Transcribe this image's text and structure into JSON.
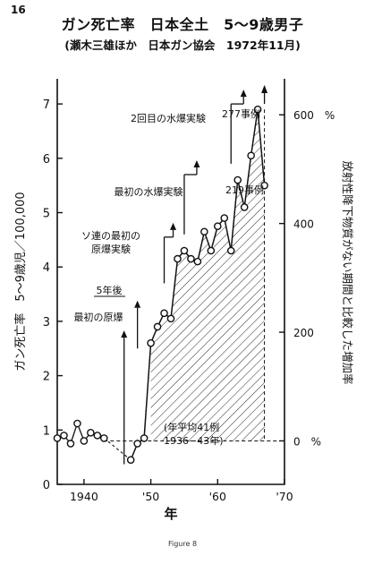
{
  "page_number": "16",
  "header": {
    "title": "ガン死亡率　日本全土　5〜9歳男子",
    "subtitle": "(瀬木三雄ほか　日本ガン協会　1972年11月)"
  },
  "footer": {
    "caption": "Figure 8"
  },
  "chart_data": {
    "type": "line",
    "title": "ガン死亡率　日本全土　5〜9歳男子",
    "subtitle": "(瀬木三雄ほか　日本ガン協会　1972年11月)",
    "xlabel": "年",
    "ylabel": "ガン死亡率　5〜9歳児／100,000",
    "ylabel_right": "放射性降下物質がない期間と比較した増加率",
    "xlim": [
      1936,
      1970
    ],
    "ylim": [
      0,
      7.5
    ],
    "x_ticks": [
      {
        "value": 1940,
        "label": "1940"
      },
      {
        "value": 1950,
        "label": "'50"
      },
      {
        "value": 1960,
        "label": "'60"
      },
      {
        "value": 1970,
        "label": "'70"
      }
    ],
    "y_ticks": [
      {
        "value": 0,
        "label": "0"
      },
      {
        "value": 1,
        "label": "1"
      },
      {
        "value": 2,
        "label": "2"
      },
      {
        "value": 3,
        "label": "3"
      },
      {
        "value": 4,
        "label": "4"
      },
      {
        "value": 5,
        "label": "5"
      },
      {
        "value": 6,
        "label": "6"
      },
      {
        "value": 7,
        "label": "7"
      }
    ],
    "y2_ticks": [
      {
        "value": 0.8,
        "label": "0　%"
      },
      {
        "value": 2.8,
        "label": "200"
      },
      {
        "value": 4.8,
        "label": "400"
      },
      {
        "value": 6.8,
        "label": "600　%"
      }
    ],
    "baseline": {
      "value": 0.8,
      "label_lines": [
        "(年平均41例",
        "1936−43年)"
      ]
    },
    "series": [
      {
        "x": [
          1936,
          1937,
          1938,
          1939,
          1940,
          1941,
          1942,
          1943,
          1947,
          1948,
          1949,
          1950,
          1951,
          1952,
          1953,
          1954,
          1955,
          1956,
          1957,
          1958,
          1959,
          1960,
          1961,
          1962,
          1963,
          1964,
          1965,
          1966,
          1967
        ],
        "y": [
          0.85,
          0.9,
          0.75,
          1.12,
          0.8,
          0.95,
          0.9,
          0.85,
          0.45,
          0.75,
          0.85,
          2.6,
          2.9,
          3.15,
          3.05,
          4.15,
          4.3,
          4.15,
          4.1,
          4.65,
          4.3,
          4.75,
          4.9,
          4.3,
          5.6,
          5.1,
          6.05,
          6.9,
          5.5
        ]
      }
    ],
    "annotations": [
      {
        "x": 1946,
        "text_lines": [
          "最初の原爆"
        ]
      },
      {
        "x": 1948,
        "text_lines": [
          "5年後"
        ]
      },
      {
        "x": 1954,
        "text_lines": [
          "ソ連の最初の",
          "原爆実験"
        ]
      },
      {
        "x": 1956,
        "text_lines": [
          "最初の水爆実験"
        ]
      },
      {
        "x": 1962,
        "text_lines": [
          "2回目の水爆実験"
        ]
      },
      {
        "x": 1966.5,
        "text_lines": [
          "277事例"
        ]
      },
      {
        "x": 1967,
        "text_lines": [
          "219事例"
        ]
      }
    ]
  }
}
